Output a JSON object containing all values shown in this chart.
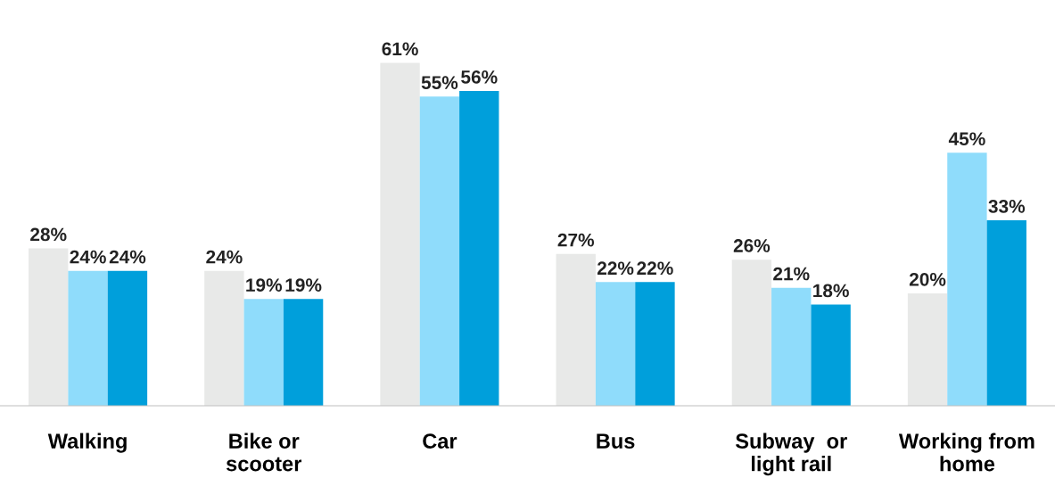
{
  "chart_data": {
    "type": "bar",
    "categories": [
      "Walking",
      "Bike or\nscooter",
      "Car",
      "Bus",
      "Subway  or\nlight rail",
      "Working from\nhome"
    ],
    "series": [
      {
        "color": "#e8e9e8",
        "values": [
          28,
          24,
          61,
          27,
          26,
          20
        ],
        "value_labels": [
          "28%",
          "24%",
          "61%",
          "27%",
          "26%",
          "20%"
        ]
      },
      {
        "color": "#8fdcfb",
        "values": [
          24,
          19,
          55,
          22,
          21,
          45
        ],
        "value_labels": [
          "24%",
          "19%",
          "55%",
          "22%",
          "21%",
          "45%"
        ]
      },
      {
        "color": "#009fdb",
        "values": [
          24,
          19,
          56,
          22,
          18,
          33
        ],
        "value_labels": [
          "24%",
          "19%",
          "56%",
          "22%",
          "18%",
          "33%"
        ]
      }
    ],
    "grid": false,
    "legend": false,
    "tick_labels": "x"
  }
}
